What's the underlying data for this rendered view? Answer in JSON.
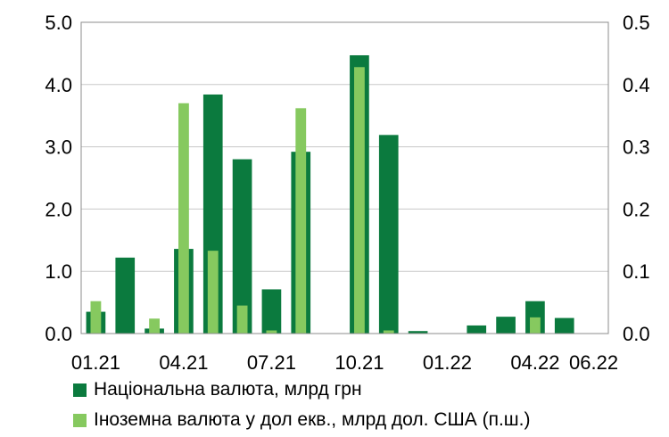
{
  "chart_data": {
    "type": "bar",
    "categories": [
      "01.21",
      "02.21",
      "03.21",
      "04.21",
      "05.21",
      "06.21",
      "07.21",
      "08.21",
      "09.21",
      "10.21",
      "11.21",
      "12.21",
      "01.22",
      "02.22",
      "03.22",
      "04.22",
      "05.22",
      "06.22"
    ],
    "x_tick_labels": [
      "01.21",
      "04.21",
      "07.21",
      "10.21",
      "01.22",
      "04.22",
      "06.22"
    ],
    "series": [
      {
        "name": "Національна валюта, млрд грн",
        "axis": "left",
        "color": "#0b7a3e",
        "values": [
          0.35,
          1.22,
          0.08,
          1.36,
          3.84,
          2.8,
          0.71,
          2.92,
          0.0,
          4.47,
          3.19,
          0.04,
          0.0,
          0.13,
          0.27,
          0.52,
          0.25,
          0.0
        ]
      },
      {
        "name": "Іноземна валюта у дол екв., млрд дол. США (п.ш.)",
        "axis": "right",
        "color": "#86c95f",
        "values": [
          0.052,
          0.0,
          0.024,
          0.37,
          0.133,
          0.045,
          0.005,
          0.362,
          0.0,
          0.428,
          0.005,
          0.0,
          0.0,
          0.0,
          0.0,
          0.026,
          0.0,
          0.0
        ]
      }
    ],
    "left_axis": {
      "ylim": [
        0,
        5
      ],
      "ticks": [
        "0.0",
        "1.0",
        "2.0",
        "3.0",
        "4.0",
        "5.0"
      ]
    },
    "right_axis": {
      "ylim": [
        0,
        0.5
      ],
      "ticks": [
        "0.0",
        "0.1",
        "0.2",
        "0.3",
        "0.4",
        "0.5"
      ]
    },
    "grid": "horizontal",
    "legend": "bottom"
  }
}
